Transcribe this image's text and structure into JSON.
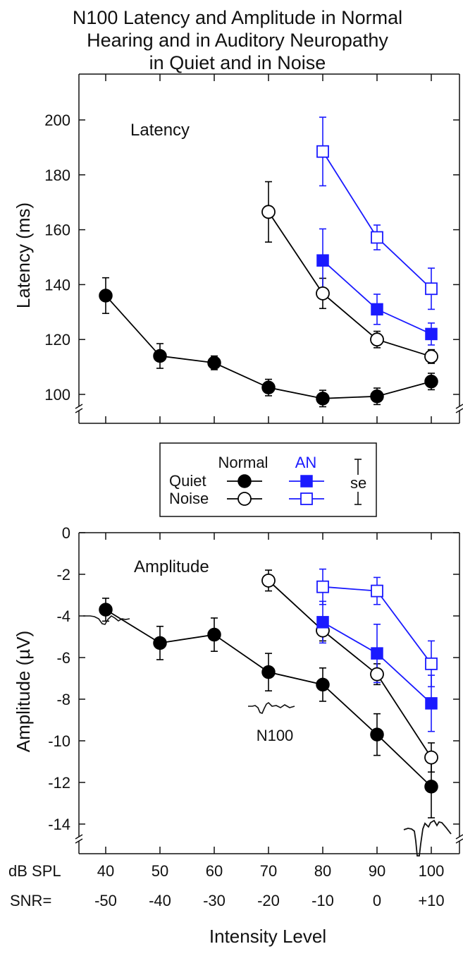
{
  "figure": {
    "title_lines": [
      "N100 Latency and Amplitude in Normal",
      "Hearing and in Auditory Neuropathy",
      "in Quiet and in Noise"
    ]
  },
  "legend": {
    "header_normal": "Normal",
    "header_an": "AN",
    "row_quiet": "Quiet",
    "row_noise": "Noise",
    "se_label": "se"
  },
  "x_axis": {
    "row1_label": "dB SPL",
    "row2_label": "SNR=",
    "dbspl": [
      "40",
      "50",
      "60",
      "70",
      "80",
      "90",
      "100"
    ],
    "snr": [
      "-50",
      "-40",
      "-30",
      "-20",
      "-10",
      "0",
      "+10"
    ],
    "xlabel": "Intensity Level"
  },
  "annotations": {
    "n100": "N100"
  },
  "colors": {
    "normal": "#000000",
    "an": "#1a1aff",
    "axes": "#111111"
  },
  "chart_data": [
    {
      "type": "line",
      "panel_label": "Latency",
      "ylabel": "Latency (ms)",
      "ylim": [
        92,
        210
      ],
      "yticks": [
        100,
        120,
        140,
        160,
        180,
        200
      ],
      "axis_break": true,
      "x": [
        40,
        50,
        60,
        70,
        80,
        90,
        100
      ],
      "series": [
        {
          "name": "Normal Quiet",
          "group": "normal",
          "marker": "filled-circle",
          "x": [
            40,
            50,
            60,
            70,
            80,
            90,
            100
          ],
          "y": [
            136,
            114,
            111.5,
            102.5,
            98.5,
            99.3,
            104.7
          ],
          "se": [
            6.5,
            4.5,
            2.5,
            3,
            3,
            3,
            3
          ]
        },
        {
          "name": "Normal Noise",
          "group": "normal",
          "marker": "open-circle",
          "x": [
            70,
            80,
            90,
            100
          ],
          "y": [
            166.5,
            136.8,
            120,
            113.8
          ],
          "se": [
            11,
            5.5,
            3,
            2.5
          ]
        },
        {
          "name": "AN Quiet",
          "group": "an",
          "marker": "filled-square",
          "x": [
            80,
            90,
            100
          ],
          "y": [
            148.8,
            131,
            122
          ],
          "se": [
            11.5,
            5.5,
            4
          ]
        },
        {
          "name": "AN Noise",
          "group": "an",
          "marker": "open-square",
          "x": [
            80,
            90,
            100
          ],
          "y": [
            188.5,
            157.2,
            138.5
          ],
          "se": [
            12.5,
            4.5,
            7.5
          ]
        }
      ]
    },
    {
      "type": "line",
      "panel_label": "Amplitude",
      "ylabel": "Amplitude (µV)",
      "ylim": [
        -15.3,
        0
      ],
      "yticks": [
        0,
        -2,
        -4,
        -6,
        -8,
        -10,
        -12,
        -14
      ],
      "axis_break": true,
      "x": [
        40,
        50,
        60,
        70,
        80,
        90,
        100
      ],
      "series": [
        {
          "name": "Normal Quiet",
          "group": "normal",
          "marker": "filled-circle",
          "x": [
            40,
            50,
            60,
            70,
            80,
            90,
            100
          ],
          "y": [
            -3.7,
            -5.3,
            -4.9,
            -6.7,
            -7.3,
            -9.7,
            -12.2
          ],
          "se": [
            0.55,
            0.8,
            0.8,
            0.9,
            0.8,
            1.0,
            1.5
          ]
        },
        {
          "name": "Normal Noise",
          "group": "normal",
          "marker": "open-circle",
          "x": [
            70,
            80,
            90,
            100
          ],
          "y": [
            -2.3,
            -4.7,
            -6.8,
            -10.8
          ],
          "se": [
            0.5,
            0.5,
            0.5,
            0.7
          ]
        },
        {
          "name": "AN Quiet",
          "group": "an",
          "marker": "filled-square",
          "x": [
            80,
            90,
            100
          ],
          "y": [
            -4.3,
            -5.8,
            -8.2
          ],
          "se": [
            1.0,
            1.4,
            1.35
          ]
        },
        {
          "name": "AN Noise",
          "group": "an",
          "marker": "open-square",
          "x": [
            80,
            90,
            100
          ],
          "y": [
            -2.6,
            -2.8,
            -6.3
          ],
          "se": [
            0.85,
            0.65,
            1.1
          ]
        }
      ]
    }
  ]
}
